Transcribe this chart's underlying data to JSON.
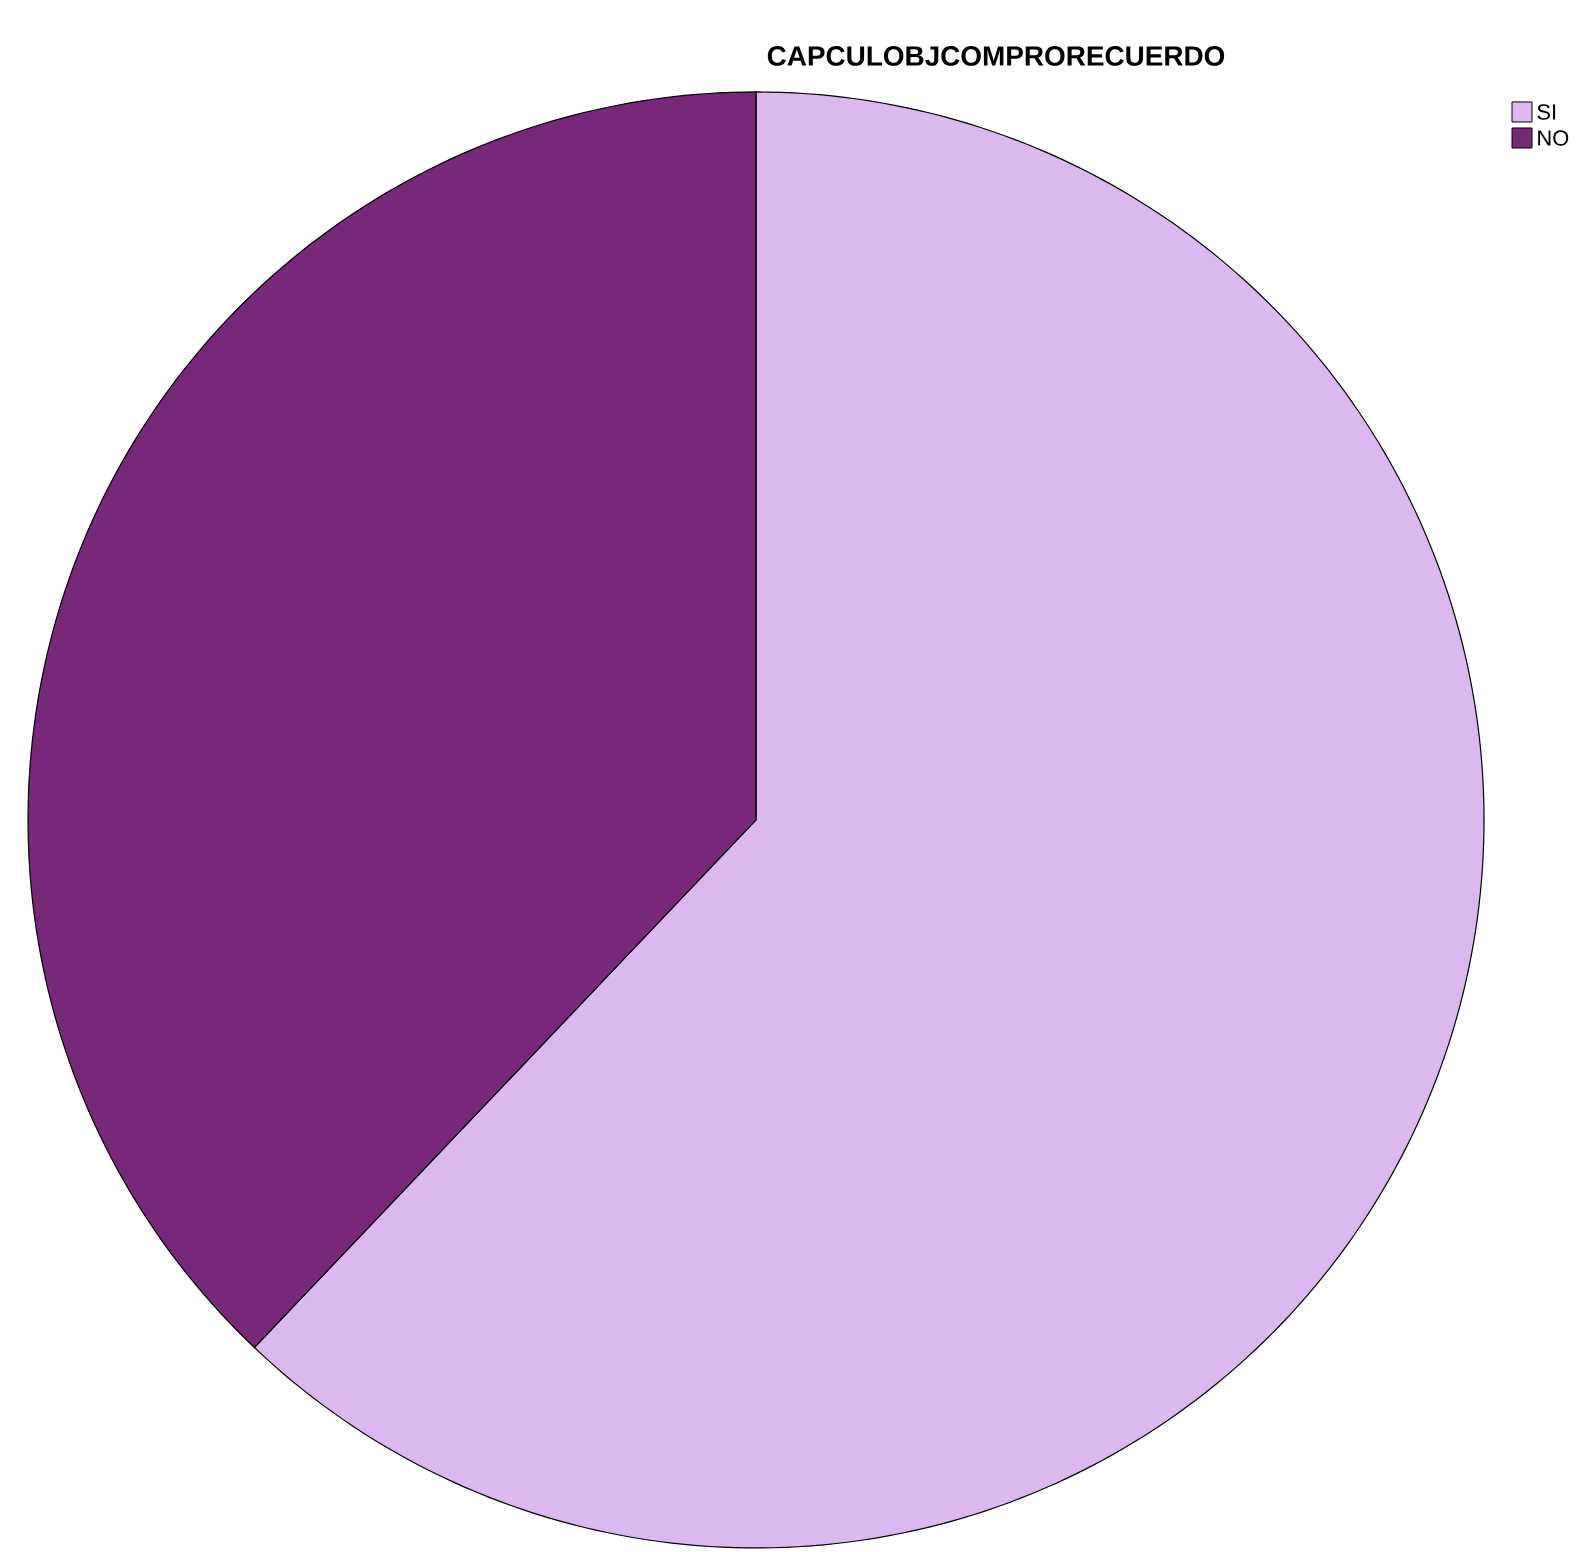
{
  "chart_data": {
    "type": "pie",
    "title": "CAPCULOBJCOMPRORECUERDO",
    "categories": [
      "SI",
      "NO"
    ],
    "values": [
      62.1,
      37.9
    ],
    "colors": [
      "#dcb8f0",
      "#782878"
    ],
    "legend": "top right"
  }
}
